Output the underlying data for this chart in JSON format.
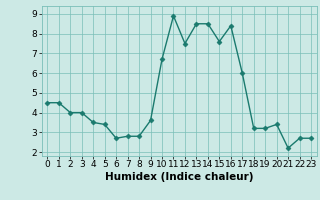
{
  "x": [
    0,
    1,
    2,
    3,
    4,
    5,
    6,
    7,
    8,
    9,
    10,
    11,
    12,
    13,
    14,
    15,
    16,
    17,
    18,
    19,
    20,
    21,
    22,
    23
  ],
  "y": [
    4.5,
    4.5,
    4.0,
    4.0,
    3.5,
    3.4,
    2.7,
    2.8,
    2.8,
    3.6,
    6.7,
    8.9,
    7.5,
    8.5,
    8.5,
    7.6,
    8.4,
    6.0,
    3.2,
    3.2,
    3.4,
    2.2,
    2.7,
    2.7
  ],
  "line_color": "#1a7a6e",
  "marker": "D",
  "marker_size": 2.5,
  "bg_color": "#cce9e5",
  "grid_color": "#7abfb8",
  "xlabel": "Humidex (Indice chaleur)",
  "xlim": [
    -0.5,
    23.5
  ],
  "ylim": [
    1.8,
    9.4
  ],
  "yticks": [
    2,
    3,
    4,
    5,
    6,
    7,
    8,
    9
  ],
  "xticks": [
    0,
    1,
    2,
    3,
    4,
    5,
    6,
    7,
    8,
    9,
    10,
    11,
    12,
    13,
    14,
    15,
    16,
    17,
    18,
    19,
    20,
    21,
    22,
    23
  ],
  "xlabel_fontsize": 7.5,
  "tick_fontsize": 6.5,
  "line_width": 1.0
}
